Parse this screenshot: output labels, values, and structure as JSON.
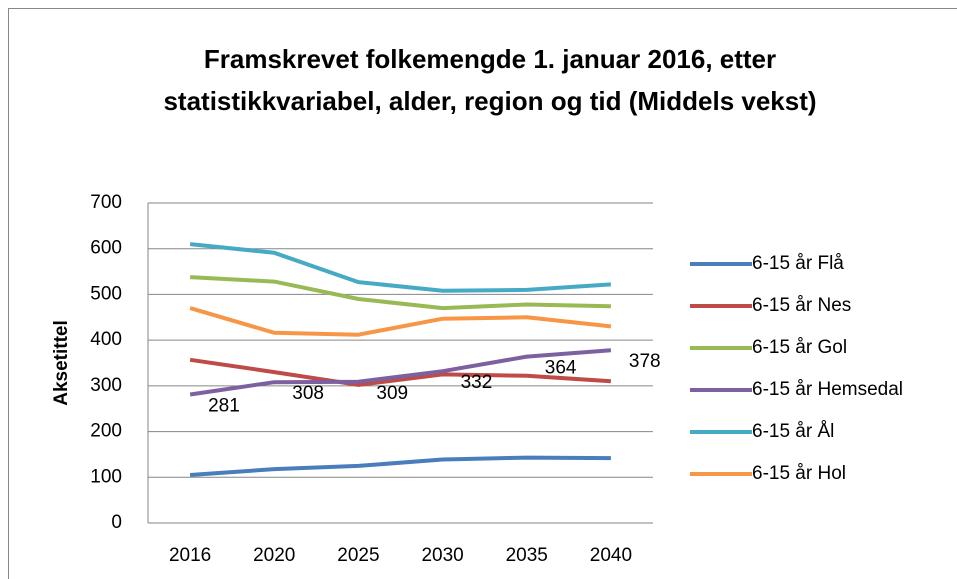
{
  "chart_data": {
    "type": "line",
    "title": "Framskrevet folkemengde 1. januar 2016, etter statistikkvariabel, alder, region og tid (Middels vekst)",
    "y_label": "Aksetittel",
    "categories": [
      "2016",
      "2020",
      "2025",
      "2030",
      "2035",
      "2040"
    ],
    "series": [
      {
        "name": "6-15 år Flå",
        "color": "#4a7ebb",
        "values": [
          105,
          118,
          125,
          139,
          143,
          142
        ]
      },
      {
        "name": "6-15 år Nes",
        "color": "#be4b48",
        "values": [
          357,
          330,
          302,
          325,
          322,
          310
        ]
      },
      {
        "name": "6-15 år Gol",
        "color": "#98b954",
        "values": [
          538,
          528,
          490,
          470,
          478,
          474
        ]
      },
      {
        "name": "6-15 år Hemsedal",
        "color": "#7d60a0",
        "values": [
          281,
          308,
          309,
          332,
          364,
          378
        ],
        "data_labels": true
      },
      {
        "name": "6-15 år Ål",
        "color": "#46aac5",
        "values": [
          610,
          591,
          527,
          508,
          510,
          522
        ]
      },
      {
        "name": "6-15 år Hol",
        "color": "#f79646",
        "values": [
          470,
          416,
          412,
          447,
          450,
          430
        ]
      }
    ],
    "ylim": [
      0,
      700
    ],
    "yticks": [
      0,
      100,
      200,
      300,
      400,
      500,
      600,
      700
    ],
    "grid": true,
    "legend": "right"
  }
}
